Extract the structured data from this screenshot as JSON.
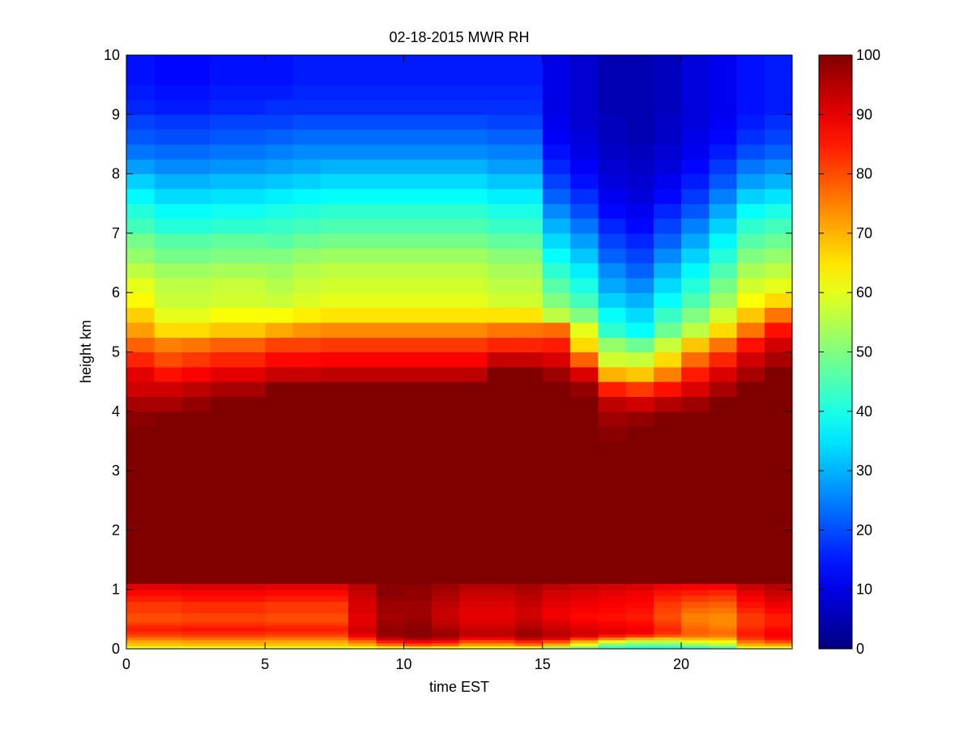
{
  "chart_data": {
    "type": "heatmap",
    "title": "02-18-2015 MWR RH",
    "xlabel": "time EST",
    "ylabel": "height km",
    "xlim": [
      0,
      24
    ],
    "ylim": [
      0,
      10
    ],
    "xticks": [
      0,
      5,
      10,
      15,
      20
    ],
    "yticks": [
      0,
      1,
      2,
      3,
      4,
      5,
      6,
      7,
      8,
      9,
      10
    ],
    "colorbar": {
      "range": [
        0,
        100
      ],
      "ticks": [
        0,
        10,
        20,
        30,
        40,
        50,
        60,
        70,
        80,
        90,
        100
      ],
      "colormap": "jet"
    },
    "grid": false,
    "x_start": 0.5,
    "x_step": 1,
    "time_centers": [
      0.5,
      1.5,
      2.5,
      3.5,
      4.5,
      5.5,
      6.5,
      7.5,
      8.5,
      9.5,
      10.5,
      11.5,
      12.5,
      13.5,
      14.5,
      15.5,
      16.5,
      17.5,
      18.5,
      19.5,
      20.5,
      21.5,
      22.5,
      23.5
    ],
    "height_levels": [
      0,
      0.05,
      0.1,
      0.15,
      0.2,
      0.25,
      0.3,
      0.35,
      0.4,
      0.45,
      0.5,
      0.6,
      0.7,
      0.8,
      0.9,
      1,
      1.1,
      1.2,
      1.3,
      1.4,
      1.5,
      1.6,
      1.7,
      1.8,
      1.9,
      2,
      2.25,
      2.5,
      2.75,
      3,
      3.25,
      3.5,
      3.75,
      4,
      4.25,
      4.5,
      4.75,
      5,
      5.25,
      5.5,
      5.75,
      6,
      6.25,
      6.5,
      6.75,
      7,
      7.25,
      7.5,
      7.75,
      8,
      8.25,
      8.5,
      8.75,
      9,
      9.25,
      9.5,
      9.75
    ],
    "rh_profiles": [
      [
        60,
        68,
        71,
        76,
        80,
        83,
        85,
        84,
        82,
        80,
        80,
        82,
        82,
        85,
        87,
        90,
        100,
        100,
        100,
        100,
        100,
        100,
        100,
        100,
        100,
        100,
        100,
        100,
        100,
        100,
        100,
        100,
        99,
        96,
        92,
        90,
        84,
        78,
        72,
        67,
        63,
        60,
        56,
        52,
        49,
        44,
        41,
        37,
        33,
        28,
        24,
        21,
        19,
        16,
        15,
        14,
        14
      ],
      [
        60,
        68,
        71,
        76,
        80,
        83,
        85,
        84,
        82,
        80,
        80,
        82,
        82,
        85,
        87,
        90,
        100,
        100,
        100,
        100,
        100,
        100,
        100,
        100,
        100,
        100,
        100,
        100,
        100,
        100,
        100,
        100,
        100,
        96,
        92,
        86,
        80,
        75,
        66,
        60,
        57,
        56,
        53,
        49,
        46,
        41,
        38,
        34,
        30,
        26,
        23,
        20,
        18,
        15,
        14,
        13,
        13
      ],
      [
        61,
        69,
        72,
        77,
        81,
        84,
        86,
        85,
        83,
        81,
        81,
        83,
        83,
        86,
        88,
        91,
        100,
        100,
        100,
        100,
        100,
        100,
        100,
        100,
        100,
        100,
        100,
        100,
        100,
        100,
        100,
        100,
        100,
        98,
        94,
        88,
        82,
        76,
        66,
        60,
        57,
        56,
        53,
        49,
        46,
        41,
        38,
        34,
        30,
        26,
        23,
        20,
        18,
        15,
        14,
        13,
        13
      ],
      [
        61,
        69,
        72,
        77,
        81,
        84,
        86,
        85,
        83,
        81,
        81,
        83,
        83,
        86,
        88,
        91,
        100,
        100,
        100,
        100,
        100,
        100,
        100,
        100,
        100,
        100,
        100,
        100,
        100,
        100,
        100,
        100,
        100,
        100,
        96,
        90,
        84,
        78,
        68,
        62,
        58,
        57,
        54,
        50,
        47,
        42,
        39,
        35,
        31,
        27,
        24,
        21,
        19,
        16,
        15,
        14,
        14
      ],
      [
        61,
        69,
        72,
        77,
        81,
        84,
        86,
        85,
        83,
        81,
        81,
        83,
        83,
        86,
        88,
        91,
        100,
        100,
        100,
        100,
        100,
        100,
        100,
        100,
        100,
        100,
        100,
        100,
        100,
        100,
        100,
        100,
        100,
        100,
        96,
        90,
        84,
        78,
        68,
        62,
        58,
        57,
        54,
        50,
        47,
        42,
        39,
        35,
        31,
        27,
        24,
        21,
        19,
        16,
        15,
        14,
        14
      ],
      [
        60,
        68,
        71,
        76,
        80,
        83,
        85,
        84,
        82,
        80,
        80,
        82,
        82,
        85,
        87,
        90,
        100,
        100,
        100,
        100,
        100,
        100,
        100,
        100,
        100,
        100,
        100,
        100,
        100,
        100,
        100,
        100,
        100,
        100,
        100,
        93,
        87,
        81,
        71,
        62,
        57,
        55,
        53,
        50,
        46,
        43,
        40,
        36,
        32,
        28,
        25,
        22,
        19,
        17,
        15,
        14,
        14
      ],
      [
        60,
        68,
        71,
        76,
        80,
        83,
        85,
        84,
        82,
        80,
        80,
        82,
        82,
        85,
        87,
        90,
        100,
        100,
        100,
        100,
        100,
        100,
        100,
        100,
        100,
        100,
        100,
        100,
        100,
        100,
        100,
        100,
        100,
        100,
        100,
        93,
        87,
        81,
        73,
        64,
        59,
        57,
        55,
        52,
        48,
        44,
        41,
        37,
        33,
        29,
        26,
        23,
        20,
        17,
        16,
        15,
        15
      ],
      [
        60,
        68,
        71,
        76,
        80,
        83,
        85,
        84,
        82,
        80,
        80,
        82,
        82,
        85,
        87,
        90,
        100,
        100,
        100,
        100,
        100,
        100,
        100,
        100,
        100,
        100,
        100,
        100,
        100,
        100,
        100,
        100,
        100,
        100,
        100,
        94,
        88,
        82,
        74,
        65,
        60,
        58,
        56,
        53,
        49,
        45,
        42,
        38,
        34,
        30,
        26,
        23,
        20,
        17,
        16,
        15,
        15
      ],
      [
        62,
        70,
        76,
        83,
        88,
        91,
        92,
        91,
        90,
        90,
        90,
        91,
        91,
        92,
        93,
        94,
        100,
        100,
        100,
        100,
        100,
        100,
        100,
        100,
        100,
        100,
        100,
        100,
        100,
        100,
        100,
        100,
        100,
        100,
        100,
        94,
        88,
        82,
        74,
        65,
        60,
        58,
        56,
        53,
        49,
        45,
        42,
        38,
        34,
        30,
        26,
        23,
        20,
        17,
        16,
        15,
        15
      ],
      [
        64,
        76,
        85,
        93,
        97,
        98,
        98,
        98,
        97,
        97,
        96,
        97,
        97,
        98,
        99,
        99,
        100,
        100,
        100,
        100,
        100,
        100,
        100,
        100,
        100,
        100,
        100,
        100,
        100,
        100,
        100,
        100,
        100,
        100,
        100,
        94,
        88,
        82,
        74,
        65,
        60,
        58,
        56,
        53,
        49,
        45,
        42,
        38,
        34,
        30,
        26,
        23,
        20,
        17,
        16,
        15,
        15
      ],
      [
        65,
        80,
        88,
        96,
        99,
        99,
        99,
        99,
        98,
        98,
        97,
        97,
        97,
        98,
        98,
        99,
        100,
        100,
        100,
        100,
        100,
        100,
        100,
        100,
        100,
        100,
        100,
        100,
        100,
        100,
        100,
        100,
        100,
        100,
        100,
        94,
        88,
        82,
        74,
        65,
        60,
        58,
        56,
        53,
        49,
        45,
        42,
        38,
        34,
        30,
        26,
        23,
        20,
        17,
        16,
        15,
        15
      ],
      [
        64,
        78,
        86,
        94,
        97,
        97,
        96,
        95,
        94,
        94,
        93,
        93,
        94,
        95,
        96,
        97,
        100,
        100,
        100,
        100,
        100,
        100,
        100,
        100,
        100,
        100,
        100,
        100,
        100,
        100,
        100,
        100,
        100,
        100,
        100,
        94,
        88,
        82,
        74,
        65,
        60,
        58,
        56,
        53,
        49,
        45,
        42,
        38,
        34,
        30,
        26,
        23,
        20,
        17,
        16,
        15,
        15
      ],
      [
        62,
        72,
        80,
        88,
        93,
        94,
        93,
        92,
        91,
        90,
        90,
        90,
        91,
        92,
        93,
        95,
        100,
        100,
        100,
        100,
        100,
        100,
        100,
        100,
        100,
        100,
        100,
        100,
        100,
        100,
        100,
        100,
        100,
        100,
        100,
        94,
        88,
        82,
        74,
        65,
        60,
        58,
        56,
        53,
        49,
        45,
        42,
        38,
        34,
        30,
        26,
        23,
        20,
        17,
        16,
        15,
        15
      ],
      [
        62,
        72,
        80,
        88,
        93,
        94,
        93,
        92,
        91,
        90,
        90,
        90,
        91,
        92,
        93,
        95,
        100,
        100,
        100,
        100,
        100,
        100,
        100,
        100,
        100,
        100,
        100,
        100,
        100,
        100,
        100,
        100,
        100,
        100,
        100,
        100,
        93,
        84,
        76,
        65,
        58,
        56,
        54,
        51,
        47,
        43,
        40,
        36,
        32,
        28,
        25,
        22,
        19,
        17,
        16,
        15,
        15
      ],
      [
        63,
        76,
        84,
        93,
        97,
        97,
        96,
        95,
        94,
        93,
        92,
        92,
        93,
        94,
        95,
        96,
        100,
        100,
        100,
        100,
        100,
        100,
        100,
        100,
        100,
        100,
        100,
        100,
        100,
        100,
        100,
        100,
        100,
        100,
        100,
        100,
        93,
        84,
        76,
        65,
        58,
        56,
        54,
        51,
        47,
        43,
        40,
        36,
        32,
        28,
        25,
        22,
        19,
        17,
        16,
        15,
        15
      ],
      [
        55,
        70,
        80,
        90,
        94,
        94,
        93,
        92,
        91,
        90,
        89,
        89,
        90,
        91,
        92,
        94,
        100,
        100,
        100,
        100,
        100,
        100,
        100,
        100,
        100,
        100,
        100,
        100,
        100,
        100,
        100,
        100,
        100,
        100,
        100,
        97,
        91,
        85,
        77,
        56,
        50,
        46,
        42,
        38,
        34,
        30,
        26,
        22,
        19,
        16,
        14,
        12,
        11,
        10,
        10,
        10,
        10
      ],
      [
        50,
        60,
        70,
        82,
        90,
        92,
        91,
        90,
        89,
        88,
        87,
        88,
        89,
        90,
        91,
        93,
        100,
        100,
        100,
        100,
        100,
        100,
        100,
        100,
        100,
        100,
        100,
        100,
        100,
        100,
        100,
        100,
        100,
        100,
        98,
        91,
        78,
        66,
        60,
        50,
        44,
        40,
        36,
        32,
        28,
        24,
        20,
        17,
        14,
        12,
        10,
        9,
        8,
        8,
        8,
        8,
        8
      ],
      [
        42,
        50,
        60,
        75,
        85,
        90,
        90,
        89,
        88,
        87,
        86,
        87,
        88,
        89,
        90,
        92,
        100,
        100,
        100,
        100,
        100,
        100,
        100,
        100,
        100,
        100,
        100,
        100,
        100,
        100,
        100,
        99,
        97,
        94,
        85,
        70,
        58,
        52,
        42,
        38,
        33,
        29,
        26,
        22,
        19,
        16,
        13,
        11,
        9,
        8,
        7,
        6,
        6,
        5,
        5,
        5,
        5
      ],
      [
        40,
        48,
        56,
        70,
        82,
        88,
        89,
        88,
        87,
        86,
        85,
        86,
        87,
        88,
        89,
        91,
        100,
        100,
        100,
        100,
        100,
        100,
        100,
        100,
        100,
        100,
        100,
        100,
        100,
        100,
        100,
        100,
        98,
        92,
        82,
        68,
        57,
        48,
        38,
        34,
        30,
        26,
        22,
        19,
        16,
        13,
        11,
        9,
        8,
        7,
        6,
        5,
        5,
        5,
        5,
        5,
        5
      ],
      [
        40,
        48,
        56,
        68,
        78,
        83,
        84,
        83,
        82,
        81,
        80,
        81,
        82,
        84,
        86,
        89,
        100,
        100,
        100,
        100,
        100,
        100,
        100,
        100,
        100,
        100,
        100,
        100,
        100,
        100,
        100,
        100,
        100,
        95,
        86,
        75,
        66,
        57,
        48,
        43,
        38,
        34,
        30,
        26,
        22,
        19,
        16,
        13,
        11,
        9,
        8,
        7,
        7,
        6,
        6,
        6,
        6
      ],
      [
        42,
        52,
        60,
        70,
        76,
        78,
        78,
        77,
        76,
        75,
        75,
        77,
        79,
        82,
        85,
        88,
        100,
        100,
        100,
        100,
        100,
        100,
        100,
        100,
        100,
        100,
        100,
        100,
        100,
        100,
        100,
        100,
        100,
        97,
        91,
        85,
        77,
        68,
        56,
        50,
        45,
        41,
        37,
        33,
        29,
        25,
        21,
        18,
        15,
        13,
        11,
        10,
        9,
        9,
        9,
        9,
        9
      ],
      [
        45,
        55,
        62,
        70,
        75,
        77,
        76,
        75,
        74,
        74,
        74,
        76,
        78,
        81,
        84,
        88,
        100,
        100,
        100,
        100,
        100,
        100,
        100,
        100,
        100,
        100,
        100,
        100,
        100,
        100,
        100,
        100,
        100,
        100,
        96,
        91,
        84,
        76,
        66,
        58,
        53,
        49,
        45,
        41,
        37,
        33,
        29,
        25,
        21,
        18,
        15,
        13,
        12,
        11,
        11,
        11,
        11
      ],
      [
        60,
        70,
        76,
        82,
        84,
        85,
        84,
        83,
        82,
        82,
        82,
        84,
        86,
        88,
        90,
        93,
        100,
        100,
        100,
        100,
        100,
        100,
        100,
        100,
        100,
        100,
        100,
        100,
        100,
        100,
        100,
        100,
        100,
        100,
        100,
        96,
        92,
        86,
        76,
        68,
        62,
        58,
        54,
        50,
        46,
        42,
        38,
        33,
        28,
        24,
        20,
        17,
        15,
        14,
        14,
        14,
        14
      ],
      [
        60,
        72,
        80,
        86,
        88,
        88,
        87,
        86,
        85,
        85,
        85,
        87,
        89,
        91,
        93,
        95,
        100,
        100,
        100,
        100,
        100,
        100,
        100,
        100,
        100,
        100,
        100,
        100,
        100,
        100,
        100,
        100,
        100,
        100,
        100,
        100,
        96,
        92,
        86,
        76,
        66,
        60,
        56,
        52,
        48,
        44,
        40,
        35,
        30,
        26,
        22,
        19,
        17,
        15,
        15,
        15,
        15
      ]
    ]
  }
}
